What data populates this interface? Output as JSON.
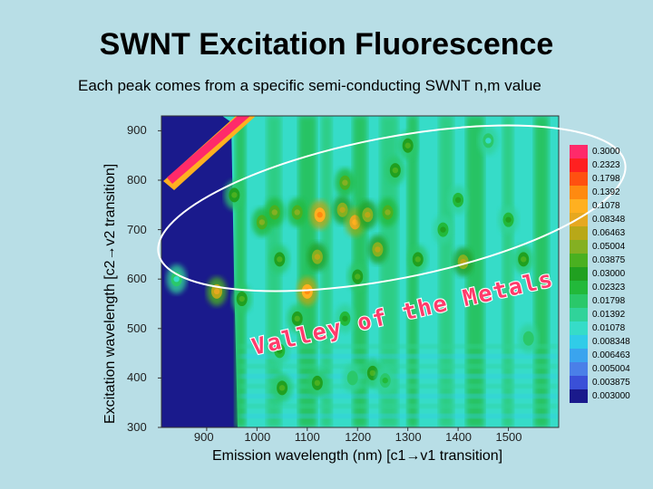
{
  "slide": {
    "title": "SWNT Excitation Fluorescence",
    "subtitle": "Each peak comes from a specific semi-conducting SWNT n,m value",
    "annotation": "Valley of the Metals"
  },
  "chart_data": {
    "type": "heatmap",
    "title": "SWNT Excitation Fluorescence",
    "xlabel": "Emission wavelength (nm) [c1→v1 transition]",
    "ylabel": "Excitation wavelength [c2→v2 transition]",
    "xlim": [
      810,
      1600
    ],
    "ylim": [
      300,
      930
    ],
    "x_ticks": [
      "900",
      "1000",
      "1100",
      "1200",
      "1300",
      "1400",
      "1500"
    ],
    "y_ticks": [
      "300",
      "400",
      "500",
      "600",
      "700",
      "800",
      "900"
    ],
    "colorbar": [
      "0.3000",
      "0.2323",
      "0.1798",
      "0.1392",
      "0.1078",
      "0.08348",
      "0.06463",
      "0.05004",
      "0.03875",
      "0.03000",
      "0.02323",
      "0.01798",
      "0.01392",
      "0.01078",
      "0.008348",
      "0.006463",
      "0.005004",
      "0.003875",
      "0.003000"
    ],
    "colors": [
      "#ff2a6a",
      "#ff2020",
      "#ff5010",
      "#ff8a10",
      "#ffb020",
      "#e6a820",
      "#b8a818",
      "#84b022",
      "#4ab020",
      "#20a020",
      "#22b93a",
      "#2ac86a",
      "#30d39a",
      "#36dcc8",
      "#30cce8",
      "#3aa4ee",
      "#4a7fe8",
      "#3a50d8",
      "#1a1a8c"
    ],
    "peaks": [
      {
        "x": 955,
        "y": 770,
        "level": 8
      },
      {
        "x": 1010,
        "y": 715,
        "level": 7
      },
      {
        "x": 1035,
        "y": 735,
        "level": 7
      },
      {
        "x": 1045,
        "y": 640,
        "level": 8
      },
      {
        "x": 1080,
        "y": 735,
        "level": 7
      },
      {
        "x": 1120,
        "y": 645,
        "level": 6
      },
      {
        "x": 1125,
        "y": 730,
        "level": 3
      },
      {
        "x": 1170,
        "y": 740,
        "level": 6
      },
      {
        "x": 1175,
        "y": 795,
        "level": 7
      },
      {
        "x": 1195,
        "y": 715,
        "level": 4
      },
      {
        "x": 1220,
        "y": 730,
        "level": 6
      },
      {
        "x": 1240,
        "y": 660,
        "level": 6
      },
      {
        "x": 1260,
        "y": 735,
        "level": 7
      },
      {
        "x": 1275,
        "y": 820,
        "level": 8
      },
      {
        "x": 1320,
        "y": 640,
        "level": 8
      },
      {
        "x": 1100,
        "y": 575,
        "level": 3
      },
      {
        "x": 1080,
        "y": 520,
        "level": 8
      },
      {
        "x": 1175,
        "y": 520,
        "level": 9
      },
      {
        "x": 1200,
        "y": 605,
        "level": 8
      },
      {
        "x": 920,
        "y": 575,
        "level": 5
      },
      {
        "x": 970,
        "y": 560,
        "level": 8
      },
      {
        "x": 1120,
        "y": 390,
        "level": 8
      },
      {
        "x": 1230,
        "y": 410,
        "level": 8
      },
      {
        "x": 1255,
        "y": 395,
        "level": 10
      },
      {
        "x": 1190,
        "y": 400,
        "level": 11
      },
      {
        "x": 1050,
        "y": 380,
        "level": 8
      },
      {
        "x": 1045,
        "y": 455,
        "level": 9
      },
      {
        "x": 1530,
        "y": 640,
        "level": 8
      },
      {
        "x": 1410,
        "y": 635,
        "level": 6
      },
      {
        "x": 1370,
        "y": 700,
        "level": 9
      },
      {
        "x": 1460,
        "y": 880,
        "level": 13
      },
      {
        "x": 840,
        "y": 600,
        "level": 13
      },
      {
        "x": 1540,
        "y": 480,
        "level": 11
      },
      {
        "x": 1500,
        "y": 720,
        "level": 9
      },
      {
        "x": 1300,
        "y": 870,
        "level": 8
      },
      {
        "x": 1400,
        "y": 760,
        "level": 9
      }
    ]
  }
}
